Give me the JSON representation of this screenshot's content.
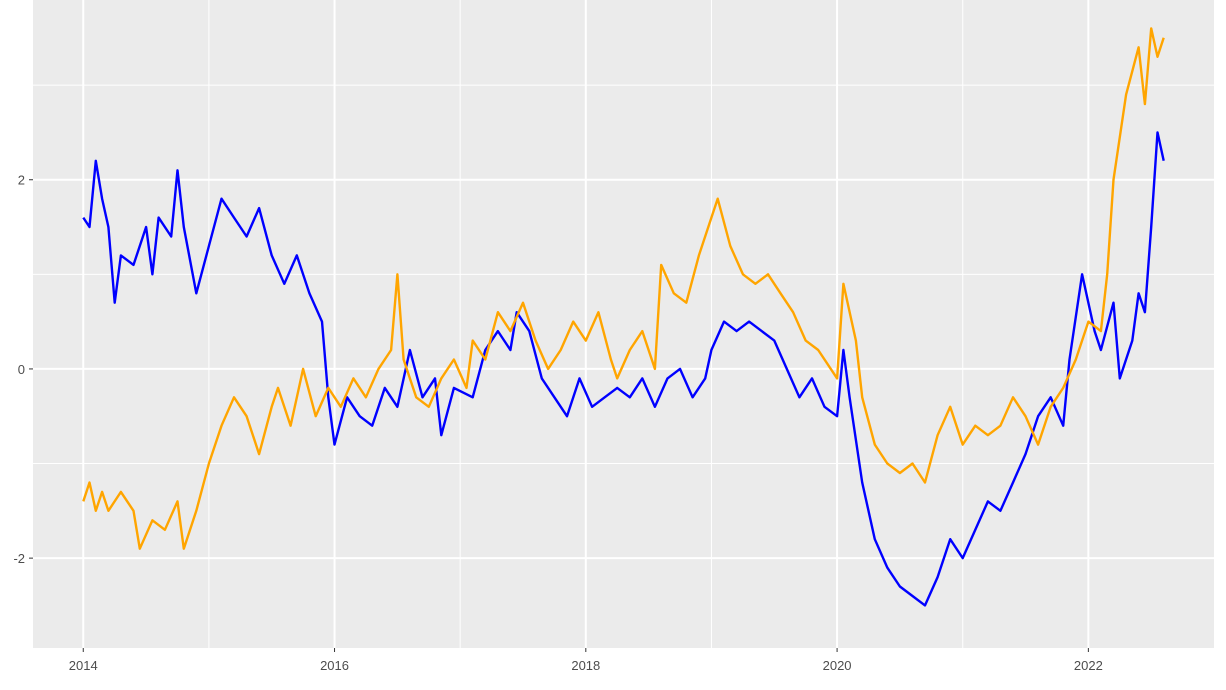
{
  "chart_data": {
    "type": "line",
    "title": "",
    "xlabel": "",
    "ylabel": "",
    "xlim": [
      2013.6,
      2023.0
    ],
    "ylim": [
      -2.95,
      3.9
    ],
    "grid": true,
    "legend": "none",
    "panel_background": "#ebebeb",
    "grid_color": "#ffffff",
    "tick_label_color": "#4d4d4d",
    "x_ticks": [
      2014,
      2016,
      2018,
      2020,
      2022
    ],
    "x_tick_labels": [
      "2014",
      "2016",
      "2018",
      "2020",
      "2022"
    ],
    "y_ticks": [
      -2,
      0,
      2
    ],
    "y_tick_labels": [
      "-2",
      "0",
      "2"
    ],
    "series": [
      {
        "color": "#0000ff",
        "points": [
          [
            2014.0,
            1.6
          ],
          [
            2014.05,
            1.5
          ],
          [
            2014.1,
            2.2
          ],
          [
            2014.15,
            1.8
          ],
          [
            2014.2,
            1.5
          ],
          [
            2014.25,
            0.7
          ],
          [
            2014.3,
            1.2
          ],
          [
            2014.4,
            1.1
          ],
          [
            2014.5,
            1.5
          ],
          [
            2014.55,
            1.0
          ],
          [
            2014.6,
            1.6
          ],
          [
            2014.7,
            1.4
          ],
          [
            2014.75,
            2.1
          ],
          [
            2014.8,
            1.5
          ],
          [
            2014.9,
            0.8
          ],
          [
            2015.0,
            1.3
          ],
          [
            2015.1,
            1.8
          ],
          [
            2015.2,
            1.6
          ],
          [
            2015.3,
            1.4
          ],
          [
            2015.4,
            1.7
          ],
          [
            2015.5,
            1.2
          ],
          [
            2015.6,
            0.9
          ],
          [
            2015.7,
            1.2
          ],
          [
            2015.8,
            0.8
          ],
          [
            2015.9,
            0.5
          ],
          [
            2015.95,
            -0.3
          ],
          [
            2016.0,
            -0.8
          ],
          [
            2016.1,
            -0.3
          ],
          [
            2016.2,
            -0.5
          ],
          [
            2016.3,
            -0.6
          ],
          [
            2016.4,
            -0.2
          ],
          [
            2016.5,
            -0.4
          ],
          [
            2016.6,
            0.2
          ],
          [
            2016.7,
            -0.3
          ],
          [
            2016.8,
            -0.1
          ],
          [
            2016.85,
            -0.7
          ],
          [
            2016.95,
            -0.2
          ],
          [
            2017.1,
            -0.3
          ],
          [
            2017.2,
            0.2
          ],
          [
            2017.3,
            0.4
          ],
          [
            2017.4,
            0.2
          ],
          [
            2017.45,
            0.6
          ],
          [
            2017.55,
            0.4
          ],
          [
            2017.65,
            -0.1
          ],
          [
            2017.75,
            -0.3
          ],
          [
            2017.85,
            -0.5
          ],
          [
            2017.95,
            -0.1
          ],
          [
            2018.05,
            -0.4
          ],
          [
            2018.15,
            -0.3
          ],
          [
            2018.25,
            -0.2
          ],
          [
            2018.35,
            -0.3
          ],
          [
            2018.45,
            -0.1
          ],
          [
            2018.55,
            -0.4
          ],
          [
            2018.65,
            -0.1
          ],
          [
            2018.75,
            0.0
          ],
          [
            2018.85,
            -0.3
          ],
          [
            2018.95,
            -0.1
          ],
          [
            2019.0,
            0.2
          ],
          [
            2019.1,
            0.5
          ],
          [
            2019.2,
            0.4
          ],
          [
            2019.3,
            0.5
          ],
          [
            2019.4,
            0.4
          ],
          [
            2019.5,
            0.3
          ],
          [
            2019.6,
            0.0
          ],
          [
            2019.7,
            -0.3
          ],
          [
            2019.8,
            -0.1
          ],
          [
            2019.9,
            -0.4
          ],
          [
            2020.0,
            -0.5
          ],
          [
            2020.05,
            0.2
          ],
          [
            2020.1,
            -0.3
          ],
          [
            2020.2,
            -1.2
          ],
          [
            2020.3,
            -1.8
          ],
          [
            2020.4,
            -2.1
          ],
          [
            2020.5,
            -2.3
          ],
          [
            2020.6,
            -2.4
          ],
          [
            2020.7,
            -2.5
          ],
          [
            2020.8,
            -2.2
          ],
          [
            2020.9,
            -1.8
          ],
          [
            2021.0,
            -2.0
          ],
          [
            2021.1,
            -1.7
          ],
          [
            2021.2,
            -1.4
          ],
          [
            2021.3,
            -1.5
          ],
          [
            2021.4,
            -1.2
          ],
          [
            2021.5,
            -0.9
          ],
          [
            2021.6,
            -0.5
          ],
          [
            2021.7,
            -0.3
          ],
          [
            2021.8,
            -0.6
          ],
          [
            2021.85,
            0.1
          ],
          [
            2021.95,
            1.0
          ],
          [
            2022.05,
            0.4
          ],
          [
            2022.1,
            0.2
          ],
          [
            2022.2,
            0.7
          ],
          [
            2022.25,
            -0.1
          ],
          [
            2022.35,
            0.3
          ],
          [
            2022.4,
            0.8
          ],
          [
            2022.45,
            0.6
          ],
          [
            2022.5,
            1.5
          ],
          [
            2022.55,
            2.5
          ],
          [
            2022.6,
            2.2
          ]
        ]
      },
      {
        "color": "#ffa500",
        "points": [
          [
            2014.0,
            -1.4
          ],
          [
            2014.05,
            -1.2
          ],
          [
            2014.1,
            -1.5
          ],
          [
            2014.15,
            -1.3
          ],
          [
            2014.2,
            -1.5
          ],
          [
            2014.3,
            -1.3
          ],
          [
            2014.4,
            -1.5
          ],
          [
            2014.45,
            -1.9
          ],
          [
            2014.55,
            -1.6
          ],
          [
            2014.65,
            -1.7
          ],
          [
            2014.75,
            -1.4
          ],
          [
            2014.8,
            -1.9
          ],
          [
            2014.9,
            -1.5
          ],
          [
            2015.0,
            -1.0
          ],
          [
            2015.1,
            -0.6
          ],
          [
            2015.2,
            -0.3
          ],
          [
            2015.3,
            -0.5
          ],
          [
            2015.4,
            -0.9
          ],
          [
            2015.5,
            -0.4
          ],
          [
            2015.55,
            -0.2
          ],
          [
            2015.65,
            -0.6
          ],
          [
            2015.75,
            0.0
          ],
          [
            2015.85,
            -0.5
          ],
          [
            2015.95,
            -0.2
          ],
          [
            2016.05,
            -0.4
          ],
          [
            2016.15,
            -0.1
          ],
          [
            2016.25,
            -0.3
          ],
          [
            2016.35,
            0.0
          ],
          [
            2016.45,
            0.2
          ],
          [
            2016.5,
            1.0
          ],
          [
            2016.55,
            0.1
          ],
          [
            2016.65,
            -0.3
          ],
          [
            2016.75,
            -0.4
          ],
          [
            2016.85,
            -0.1
          ],
          [
            2016.95,
            0.1
          ],
          [
            2017.05,
            -0.2
          ],
          [
            2017.1,
            0.3
          ],
          [
            2017.2,
            0.1
          ],
          [
            2017.3,
            0.6
          ],
          [
            2017.4,
            0.4
          ],
          [
            2017.5,
            0.7
          ],
          [
            2017.6,
            0.3
          ],
          [
            2017.7,
            0.0
          ],
          [
            2017.8,
            0.2
          ],
          [
            2017.9,
            0.5
          ],
          [
            2018.0,
            0.3
          ],
          [
            2018.1,
            0.6
          ],
          [
            2018.2,
            0.1
          ],
          [
            2018.25,
            -0.1
          ],
          [
            2018.35,
            0.2
          ],
          [
            2018.45,
            0.4
          ],
          [
            2018.55,
            0.0
          ],
          [
            2018.6,
            1.1
          ],
          [
            2018.7,
            0.8
          ],
          [
            2018.8,
            0.7
          ],
          [
            2018.9,
            1.2
          ],
          [
            2019.0,
            1.6
          ],
          [
            2019.05,
            1.8
          ],
          [
            2019.15,
            1.3
          ],
          [
            2019.25,
            1.0
          ],
          [
            2019.35,
            0.9
          ],
          [
            2019.45,
            1.0
          ],
          [
            2019.55,
            0.8
          ],
          [
            2019.65,
            0.6
          ],
          [
            2019.75,
            0.3
          ],
          [
            2019.85,
            0.2
          ],
          [
            2019.95,
            0.0
          ],
          [
            2020.0,
            -0.1
          ],
          [
            2020.05,
            0.9
          ],
          [
            2020.15,
            0.3
          ],
          [
            2020.2,
            -0.3
          ],
          [
            2020.3,
            -0.8
          ],
          [
            2020.4,
            -1.0
          ],
          [
            2020.5,
            -1.1
          ],
          [
            2020.6,
            -1.0
          ],
          [
            2020.7,
            -1.2
          ],
          [
            2020.8,
            -0.7
          ],
          [
            2020.9,
            -0.4
          ],
          [
            2021.0,
            -0.8
          ],
          [
            2021.1,
            -0.6
          ],
          [
            2021.2,
            -0.7
          ],
          [
            2021.3,
            -0.6
          ],
          [
            2021.4,
            -0.3
          ],
          [
            2021.5,
            -0.5
          ],
          [
            2021.6,
            -0.8
          ],
          [
            2021.7,
            -0.4
          ],
          [
            2021.8,
            -0.2
          ],
          [
            2021.9,
            0.1
          ],
          [
            2022.0,
            0.5
          ],
          [
            2022.1,
            0.4
          ],
          [
            2022.15,
            1.0
          ],
          [
            2022.2,
            2.0
          ],
          [
            2022.3,
            2.9
          ],
          [
            2022.4,
            3.4
          ],
          [
            2022.45,
            2.8
          ],
          [
            2022.5,
            3.6
          ],
          [
            2022.55,
            3.3
          ],
          [
            2022.6,
            3.5
          ]
        ]
      }
    ]
  }
}
